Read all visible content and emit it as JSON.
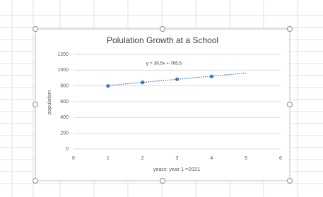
{
  "chart_data": {
    "type": "scatter",
    "title": "Polulation Growth at a School",
    "x_label": "years: year 1 =2021",
    "y_label": "population",
    "series": [
      {
        "name": "population",
        "color": "#4472c4",
        "x": [
          1,
          2,
          3,
          4
        ],
        "values": [
          800,
          845,
          885,
          920
        ]
      }
    ],
    "trendline": {
      "label": "y = 39.5x + 765.5",
      "color": "#4472c4",
      "x": [
        1,
        5
      ],
      "values": [
        805,
        963
      ]
    },
    "xlim": [
      0,
      6
    ],
    "xticks": [
      0,
      1,
      2,
      3,
      4,
      5,
      6
    ],
    "ylim": [
      0,
      1200
    ],
    "yticks": [
      0,
      200,
      400,
      600,
      800,
      1000,
      1200
    ],
    "grid": true
  }
}
